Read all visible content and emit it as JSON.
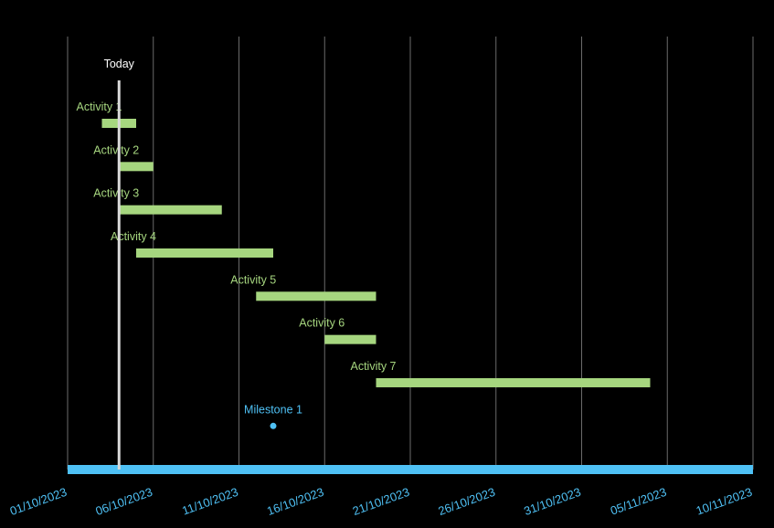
{
  "chart_data": {
    "type": "gantt",
    "colors": {
      "task": "#a6d67f",
      "axis": "#4fc1f5",
      "milestone": "#4fc1f5",
      "today": "#d9d9d9",
      "grid": "#6b6b6b",
      "background": "#000000"
    },
    "xlim": [
      "2023-10-01",
      "2023-11-10"
    ],
    "x_tick_labels": [
      "01/10/2023",
      "06/10/2023",
      "11/10/2023",
      "16/10/2023",
      "21/10/2023",
      "26/10/2023",
      "31/10/2023",
      "05/11/2023",
      "10/11/2023"
    ],
    "grid": "vertical",
    "today": {
      "label": "Today",
      "date": "2023-10-04"
    },
    "tasks": [
      {
        "name": "Activity 1",
        "start": "2023-10-03",
        "end": "2023-10-05"
      },
      {
        "name": "Activity 2",
        "start": "2023-10-04",
        "end": "2023-10-06"
      },
      {
        "name": "Activity 3",
        "start": "2023-10-04",
        "end": "2023-10-10"
      },
      {
        "name": "Activity 4",
        "start": "2023-10-05",
        "end": "2023-10-13"
      },
      {
        "name": "Activity 5",
        "start": "2023-10-12",
        "end": "2023-10-19"
      },
      {
        "name": "Activity 6",
        "start": "2023-10-16",
        "end": "2023-10-19"
      },
      {
        "name": "Activity 7",
        "start": "2023-10-19",
        "end": "2023-11-04"
      }
    ],
    "milestones": [
      {
        "name": "Milestone 1",
        "date": "2023-10-13"
      }
    ]
  }
}
